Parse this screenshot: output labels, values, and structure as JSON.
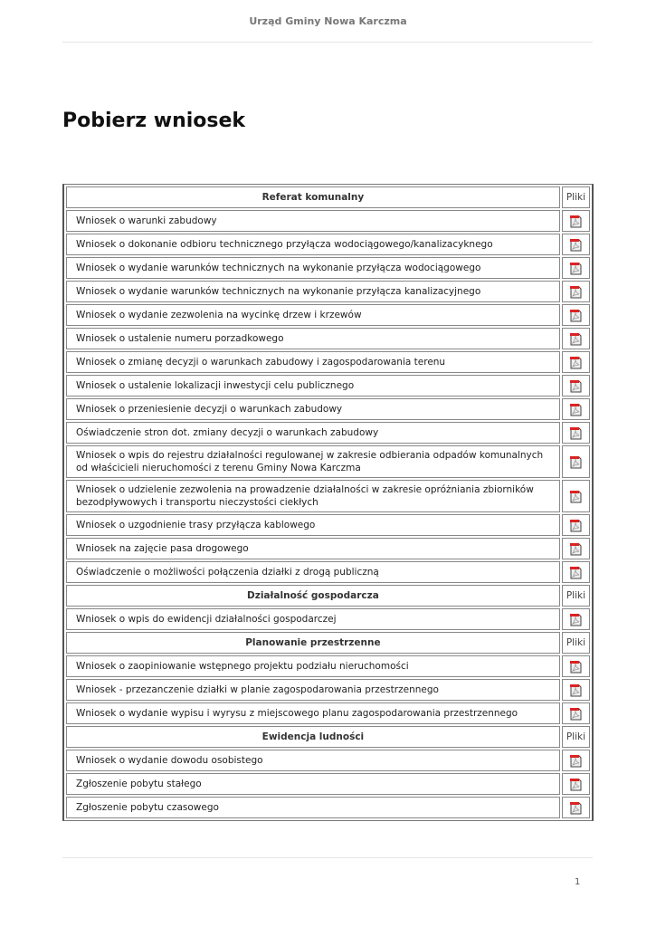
{
  "header": {
    "title": "Urząd Gminy Nowa Karczma"
  },
  "page_title": "Pobierz wniosek",
  "files_col": "Pliki",
  "file_icon": "pdf-icon",
  "sections": [
    {
      "name": "Referat komunalny",
      "items": [
        "Wniosek o warunki zabudowy",
        "Wniosek o dokonanie odbioru technicznego przyłącza wodociągowego/kanalizacyknego",
        "Wniosek o wydanie warunków technicznych na wykonanie przyłącza wodociągowego",
        "Wniosek o wydanie warunków technicznych na wykonanie przyłącza kanalizacyjnego",
        "Wniosek o wydanie zezwolenia na wycinkę drzew i krzewów",
        "Wniosek o ustalenie numeru porzadkowego",
        "Wniosek o zmianę decyzji o warunkach zabudowy i zagospodarowania terenu",
        "Wniosek o ustalenie lokalizacji inwestycji celu publicznego",
        "Wniosek o przeniesienie decyzji o warunkach zabudowy",
        "Oświadczenie stron dot. zmiany decyzji o warunkach zabudowy",
        "Wniosek o wpis do rejestru działalności regulowanej w zakresie odbierania odpadów komunalnych od właścicieli nieruchomości z terenu Gminy Nowa Karczma",
        "Wniosek o udzielenie zezwolenia na prowadzenie działalności w zakresie opróżniania zbiorników bezodpływowych i transportu nieczystości ciekłych",
        "Wniosek o uzgodnienie trasy przyłącza kablowego",
        "Wniosek na zajęcie pasa drogowego",
        "Oświadczenie o możliwości połączenia działki z drogą publiczną"
      ]
    },
    {
      "name": "Działalność gospodarcza",
      "items": [
        "Wniosek o wpis do ewidencji działalności gospodarczej"
      ]
    },
    {
      "name": "Planowanie przestrzenne",
      "items": [
        "Wniosek o zaopiniowanie wstępnego projektu podziału nieruchomości",
        "Wniosek - przezanczenie działki w planie zagospodarowania przestrzennego",
        "Wniosek o wydanie wypisu i wyrysu z miejscowego planu zagospodarowania przestrzennego"
      ]
    },
    {
      "name": "Ewidencja ludności",
      "items": [
        "Wniosek o wydanie dowodu osobistego",
        "Zgłoszenie pobytu stałego",
        "Zgłoszenie pobytu czasowego"
      ]
    }
  ],
  "footer": {
    "page_number": "1"
  }
}
